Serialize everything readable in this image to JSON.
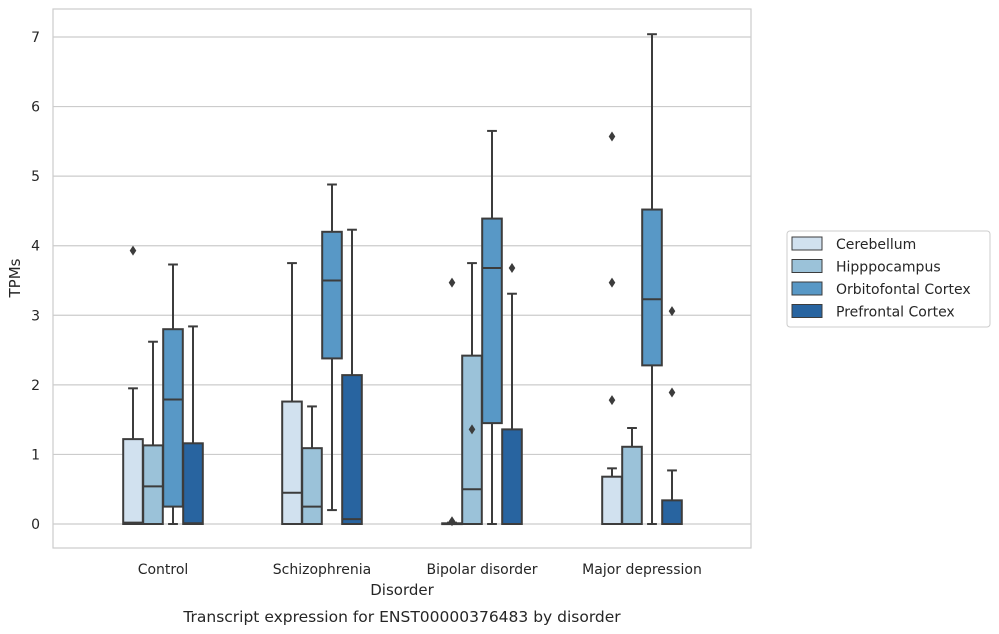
{
  "chart_data": {
    "type": "box",
    "title": "",
    "xlabel": "Disorder",
    "ylabel": "TPMs",
    "caption": "Transcript expression for ENST00000376483 by disorder",
    "ylim": [
      -0.33,
      7.4
    ],
    "yticks": [
      0,
      1,
      2,
      3,
      4,
      5,
      6,
      7
    ],
    "grid": true,
    "legend_position": "right",
    "categories": [
      "Control",
      "Schizophrenia",
      "Bipolar disorder",
      "Major depression"
    ],
    "series": [
      {
        "name": "Cerebellum",
        "color": "#d1e1ef",
        "boxes": [
          {
            "whislo": 0,
            "q1": 0,
            "med": 0.02,
            "q3": 1.22,
            "whishi": 1.95,
            "fliers": [
              3.93
            ]
          },
          {
            "whislo": 0,
            "q1": 0,
            "med": 0.45,
            "q3": 1.76,
            "whishi": 3.75,
            "fliers": []
          },
          {
            "whislo": 0,
            "q1": 0,
            "med": 0,
            "q3": 0.01,
            "whishi": 0.02,
            "fliers": [
              0.04,
              3.47
            ]
          },
          {
            "whislo": 0,
            "q1": 0,
            "med": 0,
            "q3": 0.68,
            "whishi": 0.8,
            "fliers": [
              1.78,
              3.47,
              5.57
            ]
          }
        ]
      },
      {
        "name": "Hipppocampus",
        "color": "#9bc2d9",
        "boxes": [
          {
            "whislo": 0,
            "q1": 0,
            "med": 0.54,
            "q3": 1.13,
            "whishi": 2.62,
            "fliers": []
          },
          {
            "whislo": 0,
            "q1": 0,
            "med": 0.25,
            "q3": 1.09,
            "whishi": 1.69,
            "fliers": []
          },
          {
            "whislo": 0,
            "q1": 0,
            "med": 0.5,
            "q3": 2.42,
            "whishi": 3.75,
            "fliers": [
              1.36
            ]
          },
          {
            "whislo": 0,
            "q1": 0,
            "med": 0,
            "q3": 1.11,
            "whishi": 1.38,
            "fliers": []
          }
        ]
      },
      {
        "name": "Orbitofontal Cortex",
        "color": "#5898c6",
        "boxes": [
          {
            "whislo": 0,
            "q1": 0.25,
            "med": 1.79,
            "q3": 2.8,
            "whishi": 3.73,
            "fliers": []
          },
          {
            "whislo": 0.2,
            "q1": 2.38,
            "med": 3.5,
            "q3": 4.2,
            "whishi": 4.88,
            "fliers": []
          },
          {
            "whislo": 0,
            "q1": 1.45,
            "med": 3.68,
            "q3": 4.39,
            "whishi": 5.65,
            "fliers": []
          },
          {
            "whislo": 0,
            "q1": 2.28,
            "med": 3.23,
            "q3": 4.52,
            "whishi": 7.04,
            "fliers": []
          }
        ]
      },
      {
        "name": "Prefrontal Cortex",
        "color": "#2864a0",
        "boxes": [
          {
            "whislo": 0,
            "q1": 0,
            "med": 0.01,
            "q3": 1.16,
            "whishi": 2.84,
            "fliers": []
          },
          {
            "whislo": 0,
            "q1": 0,
            "med": 0.07,
            "q3": 2.14,
            "whishi": 4.23,
            "fliers": []
          },
          {
            "whislo": 0,
            "q1": 0,
            "med": 0,
            "q3": 1.36,
            "whishi": 3.31,
            "fliers": [
              3.68
            ]
          },
          {
            "whislo": 0,
            "q1": 0,
            "med": 0,
            "q3": 0.34,
            "whishi": 0.77,
            "fliers": [
              1.89,
              3.06
            ]
          }
        ]
      }
    ]
  }
}
